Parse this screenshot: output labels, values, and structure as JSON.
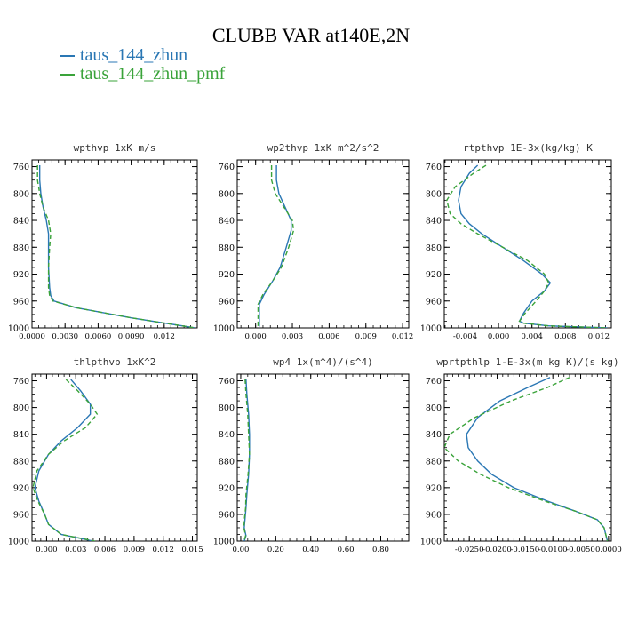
{
  "page_title": "CLUBB VAR at140E,2N",
  "colors": {
    "series0": "#2a77b4",
    "series1": "#3aa33a",
    "axis": "#000000"
  },
  "legend": [
    {
      "label": "taus_144_zhun",
      "color": "#2a77b4",
      "dash": "solid"
    },
    {
      "label": "taus_144_zhun_pmf",
      "color": "#3aa33a",
      "dash": "dashed"
    }
  ],
  "chart_data": [
    {
      "type": "line",
      "title": "wpthvp   1xK m/s",
      "xlim": [
        0.0,
        0.015
      ],
      "ylim": [
        1000,
        750
      ],
      "y_inverted": true,
      "x_ticks": [
        "0.0000",
        "0.0030",
        "0.0060",
        "0.0090",
        "0.012"
      ],
      "x_tick_values": [
        0,
        0.003,
        0.006,
        0.009,
        0.012
      ],
      "y_ticks": [
        "760",
        "800",
        "840",
        "880",
        "920",
        "960",
        "1000"
      ],
      "y_tick_values": [
        760,
        800,
        840,
        880,
        920,
        960,
        1000
      ],
      "series": [
        {
          "x": [
            0.0007,
            0.0007,
            0.0008,
            0.001,
            0.0013,
            0.0015,
            0.0015,
            0.0015,
            0.0016,
            0.0017,
            0.002,
            0.004,
            0.009,
            0.0148
          ],
          "y": [
            758,
            780,
            800,
            820,
            840,
            860,
            880,
            910,
            940,
            952,
            960,
            970,
            985,
            1000
          ]
        },
        {
          "x": [
            0.0005,
            0.0005,
            0.0007,
            0.001,
            0.0015,
            0.0017,
            0.0016,
            0.0015,
            0.0015,
            0.0016,
            0.0019,
            0.004,
            0.009,
            0.0148
          ],
          "y": [
            758,
            780,
            800,
            820,
            840,
            860,
            880,
            910,
            940,
            952,
            960,
            970,
            985,
            1000
          ]
        }
      ]
    },
    {
      "type": "line",
      "title": "wp2thvp   1xK m^2/s^2",
      "xlim": [
        -0.0015,
        0.0125
      ],
      "ylim": [
        1000,
        750
      ],
      "y_inverted": true,
      "x_ticks": [
        "0.000",
        "0.003",
        "0.006",
        "0.009",
        "0.012"
      ],
      "x_tick_values": [
        0,
        0.003,
        0.006,
        0.009,
        0.012
      ],
      "y_ticks": [
        "760",
        "800",
        "840",
        "880",
        "920",
        "960",
        "1000"
      ],
      "y_tick_values": [
        760,
        800,
        840,
        880,
        920,
        960,
        1000
      ],
      "series": [
        {
          "x": [
            0.0017,
            0.0017,
            0.0019,
            0.0024,
            0.0029,
            0.0029,
            0.0025,
            0.002,
            0.0014,
            0.0007,
            0.0003,
            0.0003,
            0.0003
          ],
          "y": [
            758,
            780,
            800,
            820,
            840,
            855,
            880,
            910,
            930,
            950,
            965,
            985,
            998
          ]
        },
        {
          "x": [
            0.0013,
            0.0013,
            0.0016,
            0.0023,
            0.003,
            0.0031,
            0.0027,
            0.0021,
            0.0014,
            0.0006,
            0.0002,
            0.0002,
            0.0002
          ],
          "y": [
            758,
            780,
            800,
            820,
            840,
            855,
            880,
            910,
            930,
            950,
            965,
            985,
            998
          ]
        }
      ]
    },
    {
      "type": "line",
      "title": "rtpthvp   1E-3x(kg/kg) K",
      "xlim": [
        -0.0065,
        0.0135
      ],
      "ylim": [
        1000,
        750
      ],
      "y_inverted": true,
      "x_ticks": [
        "-0.004",
        "0.000",
        "0.004",
        "0.008",
        "0.012"
      ],
      "x_tick_values": [
        -0.004,
        0,
        0.004,
        0.008,
        0.012
      ],
      "y_ticks": [
        "760",
        "800",
        "840",
        "880",
        "920",
        "960",
        "1000"
      ],
      "y_tick_values": [
        760,
        800,
        840,
        880,
        920,
        960,
        1000
      ],
      "series": [
        {
          "x": [
            -0.0025,
            -0.0035,
            -0.0045,
            -0.0048,
            -0.0045,
            -0.0035,
            -0.002,
            0.0005,
            0.003,
            0.0052,
            0.0062,
            0.0055,
            0.004,
            0.003,
            0.0025,
            0.003,
            0.006,
            0.013
          ],
          "y": [
            758,
            770,
            790,
            810,
            830,
            845,
            860,
            880,
            900,
            920,
            933,
            945,
            960,
            978,
            990,
            993,
            997,
            1000
          ]
        },
        {
          "x": [
            -0.0015,
            -0.003,
            -0.0052,
            -0.0062,
            -0.0058,
            -0.0045,
            -0.0025,
            0.0005,
            0.0035,
            0.0055,
            0.006,
            0.0055,
            0.0045,
            0.0032,
            0.0025,
            0.003,
            0.006,
            0.013
          ],
          "y": [
            758,
            770,
            790,
            810,
            830,
            845,
            860,
            880,
            900,
            920,
            933,
            945,
            960,
            978,
            990,
            993,
            997,
            1000
          ]
        }
      ]
    },
    {
      "type": "line",
      "title": "thlpthvp   1xK^2",
      "xlim": [
        -0.0015,
        0.0155
      ],
      "ylim": [
        1000,
        750
      ],
      "y_inverted": true,
      "x_ticks": [
        "0.000",
        "0.003",
        "0.006",
        "0.009",
        "0.012",
        "0.015"
      ],
      "x_tick_values": [
        0,
        0.003,
        0.006,
        0.009,
        0.012,
        0.015
      ],
      "y_ticks": [
        "760",
        "800",
        "840",
        "880",
        "920",
        "960",
        "1000"
      ],
      "y_tick_values": [
        760,
        800,
        840,
        880,
        920,
        960,
        1000
      ],
      "series": [
        {
          "x": [
            0.0025,
            0.0035,
            0.0045,
            0.0045,
            0.0032,
            0.0015,
            0.0002,
            -0.0008,
            -0.0012,
            -0.0008,
            -0.0002,
            0.0002,
            0.0015,
            0.0048
          ],
          "y": [
            758,
            775,
            795,
            810,
            830,
            850,
            870,
            895,
            920,
            940,
            960,
            975,
            990,
            1000
          ]
        },
        {
          "x": [
            0.002,
            0.0032,
            0.0045,
            0.0052,
            0.004,
            0.0018,
            0.0002,
            -0.001,
            -0.0014,
            -0.0009,
            -0.0002,
            0.0002,
            0.0015,
            0.005
          ],
          "y": [
            758,
            775,
            795,
            810,
            830,
            850,
            870,
            895,
            920,
            940,
            960,
            975,
            990,
            1000
          ]
        }
      ]
    },
    {
      "type": "line",
      "title": "wp4   1x(m^4)/(s^4)",
      "xlim": [
        -0.02,
        0.96
      ],
      "ylim": [
        1000,
        750
      ],
      "y_inverted": true,
      "x_ticks": [
        "0.00",
        "0.20",
        "0.40",
        "0.60",
        "0.80"
      ],
      "x_tick_values": [
        0,
        0.2,
        0.4,
        0.6,
        0.8
      ],
      "y_ticks": [
        "760",
        "800",
        "840",
        "880",
        "920",
        "960",
        "1000"
      ],
      "y_tick_values": [
        760,
        800,
        840,
        880,
        920,
        960,
        1000
      ],
      "series": [
        {
          "x": [
            0.03,
            0.035,
            0.045,
            0.05,
            0.05,
            0.045,
            0.035,
            0.03,
            0.025,
            0.02,
            0.03,
            0.02
          ],
          "y": [
            758,
            780,
            810,
            840,
            870,
            900,
            930,
            950,
            965,
            980,
            992,
            1000
          ]
        },
        {
          "x": [
            0.025,
            0.03,
            0.04,
            0.045,
            0.05,
            0.042,
            0.03,
            0.028,
            0.022,
            0.018,
            0.028,
            0.018
          ],
          "y": [
            758,
            780,
            810,
            840,
            870,
            900,
            930,
            950,
            965,
            980,
            992,
            1000
          ]
        }
      ]
    },
    {
      "type": "line",
      "title": "wprtpthlp   1-E-3x(m kg K)/(s kg)",
      "xlim": [
        -0.0295,
        0.0005
      ],
      "ylim": [
        1000,
        750
      ],
      "y_inverted": true,
      "x_ticks": [
        "-0.0250",
        "-0.0200",
        "-0.0150",
        "-0.0100",
        "-0.0050",
        "0.0000"
      ],
      "x_tick_values": [
        -0.025,
        -0.02,
        -0.015,
        -0.01,
        -0.005,
        0
      ],
      "y_ticks": [
        "760",
        "800",
        "840",
        "880",
        "920",
        "960",
        "1000"
      ],
      "y_tick_values": [
        760,
        800,
        840,
        880,
        920,
        960,
        1000
      ],
      "series": [
        {
          "x": [
            -0.0105,
            -0.0145,
            -0.0195,
            -0.0235,
            -0.0255,
            -0.0252,
            -0.0235,
            -0.021,
            -0.017,
            -0.011,
            -0.006,
            -0.002,
            -0.0008,
            -0.0005,
            -0.0002
          ],
          "y": [
            755,
            770,
            790,
            815,
            840,
            860,
            880,
            900,
            920,
            940,
            955,
            968,
            980,
            990,
            1000
          ]
        },
        {
          "x": [
            -0.007,
            -0.011,
            -0.0175,
            -0.024,
            -0.0285,
            -0.0295,
            -0.027,
            -0.023,
            -0.018,
            -0.0115,
            -0.006,
            -0.002,
            -0.0008,
            -0.0005,
            -0.0002
          ],
          "y": [
            755,
            770,
            790,
            815,
            840,
            860,
            880,
            900,
            920,
            940,
            955,
            968,
            980,
            990,
            1000
          ]
        }
      ]
    }
  ]
}
